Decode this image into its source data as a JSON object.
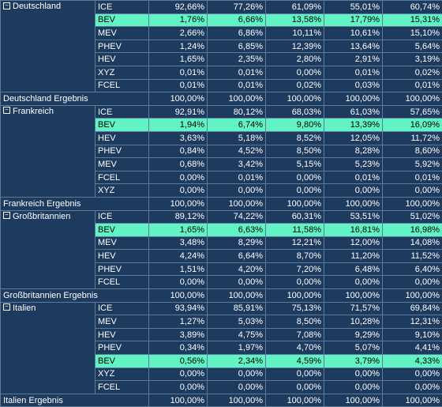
{
  "highlight_color": "#62f3c4",
  "background_color": "#1d3a5f",
  "groups": [
    {
      "name": "Deutschland",
      "collapse_symbol": "−",
      "rows": [
        {
          "type": "ICE",
          "values": [
            "92,66%",
            "77,26%",
            "61,09%",
            "55,01%",
            "60,74%"
          ],
          "highlight": false
        },
        {
          "type": "BEV",
          "values": [
            "1,76%",
            "6,66%",
            "13,58%",
            "17,79%",
            "15,31%"
          ],
          "highlight": true
        },
        {
          "type": "MEV",
          "values": [
            "2,66%",
            "6,86%",
            "10,11%",
            "10,61%",
            "15,10%"
          ],
          "highlight": false
        },
        {
          "type": "PHEV",
          "values": [
            "1,24%",
            "6,85%",
            "12,39%",
            "13,64%",
            "5,64%"
          ],
          "highlight": false
        },
        {
          "type": "HEV",
          "values": [
            "1,65%",
            "2,35%",
            "2,80%",
            "2,91%",
            "3,19%"
          ],
          "highlight": false
        },
        {
          "type": "XYZ",
          "values": [
            "0,01%",
            "0,01%",
            "0,00%",
            "0,01%",
            "0,02%"
          ],
          "highlight": false
        },
        {
          "type": "FCEL",
          "values": [
            "0,01%",
            "0,01%",
            "0,02%",
            "0,03%",
            "0,01%"
          ],
          "highlight": false
        }
      ],
      "total_label": "Deutschland Ergebnis",
      "total_values": [
        "100,00%",
        "100,00%",
        "100,00%",
        "100,00%",
        "100,00%"
      ]
    },
    {
      "name": "Frankreich",
      "collapse_symbol": "−",
      "rows": [
        {
          "type": "ICE",
          "values": [
            "92,91%",
            "80,12%",
            "68,03%",
            "61,03%",
            "57,65%"
          ],
          "highlight": false
        },
        {
          "type": "BEV",
          "values": [
            "1,94%",
            "6,74%",
            "9,80%",
            "13,39%",
            "16,09%"
          ],
          "highlight": true
        },
        {
          "type": "HEV",
          "values": [
            "3,63%",
            "5,18%",
            "8,52%",
            "12,05%",
            "11,72%"
          ],
          "highlight": false
        },
        {
          "type": "PHEV",
          "values": [
            "0,84%",
            "4,52%",
            "8,50%",
            "8,28%",
            "8,60%"
          ],
          "highlight": false
        },
        {
          "type": "MEV",
          "values": [
            "0,68%",
            "3,42%",
            "5,15%",
            "5,23%",
            "5,92%"
          ],
          "highlight": false
        },
        {
          "type": "FCEL",
          "values": [
            "0,00%",
            "0,01%",
            "0,00%",
            "0,01%",
            "0,01%"
          ],
          "highlight": false
        },
        {
          "type": "XYZ",
          "values": [
            "0,00%",
            "0,00%",
            "0,00%",
            "0,00%",
            "0,00%"
          ],
          "highlight": false
        }
      ],
      "total_label": "Frankreich Ergebnis",
      "total_values": [
        "100,00%",
        "100,00%",
        "100,00%",
        "100,00%",
        "100,00%"
      ]
    },
    {
      "name": "Großbritannien",
      "collapse_symbol": "−",
      "rows": [
        {
          "type": "ICE",
          "values": [
            "89,12%",
            "74,22%",
            "60,31%",
            "53,51%",
            "51,02%"
          ],
          "highlight": false
        },
        {
          "type": "BEV",
          "values": [
            "1,65%",
            "6,63%",
            "11,58%",
            "16,81%",
            "16,98%"
          ],
          "highlight": true
        },
        {
          "type": "MEV",
          "values": [
            "3,48%",
            "8,29%",
            "12,21%",
            "12,00%",
            "14,08%"
          ],
          "highlight": false
        },
        {
          "type": "HEV",
          "values": [
            "4,24%",
            "6,64%",
            "8,70%",
            "11,20%",
            "11,52%"
          ],
          "highlight": false
        },
        {
          "type": "PHEV",
          "values": [
            "1,51%",
            "4,20%",
            "7,20%",
            "6,48%",
            "6,40%"
          ],
          "highlight": false
        },
        {
          "type": "FCEL",
          "values": [
            "0,00%",
            "0,00%",
            "0,00%",
            "0,00%",
            "0,00%"
          ],
          "highlight": false
        }
      ],
      "total_label": "Großbritannien Ergebnis",
      "total_values": [
        "100,00%",
        "100,00%",
        "100,00%",
        "100,00%",
        "100,00%"
      ]
    },
    {
      "name": "Italien",
      "collapse_symbol": "−",
      "rows": [
        {
          "type": "ICE",
          "values": [
            "93,94%",
            "85,91%",
            "75,13%",
            "71,57%",
            "69,84%"
          ],
          "highlight": false
        },
        {
          "type": "MEV",
          "values": [
            "1,27%",
            "5,03%",
            "8,50%",
            "10,28%",
            "12,31%"
          ],
          "highlight": false
        },
        {
          "type": "HEV",
          "values": [
            "3,89%",
            "4,75%",
            "7,08%",
            "9,29%",
            "9,10%"
          ],
          "highlight": false
        },
        {
          "type": "PHEV",
          "values": [
            "0,34%",
            "1,97%",
            "4,70%",
            "5,07%",
            "4,41%"
          ],
          "highlight": false
        },
        {
          "type": "BEV",
          "values": [
            "0,56%",
            "2,34%",
            "4,59%",
            "3,79%",
            "4,33%"
          ],
          "highlight": true
        },
        {
          "type": "XYZ",
          "values": [
            "0,00%",
            "0,00%",
            "0,00%",
            "0,00%",
            "0,00%"
          ],
          "highlight": false
        },
        {
          "type": "FCEL",
          "values": [
            "0,00%",
            "0,00%",
            "0,00%",
            "0,00%",
            "0,00%"
          ],
          "highlight": false
        }
      ],
      "total_label": "Italien Ergebnis",
      "total_values": [
        "100,00%",
        "100,00%",
        "100,00%",
        "100,00%",
        "100,00%"
      ]
    }
  ]
}
